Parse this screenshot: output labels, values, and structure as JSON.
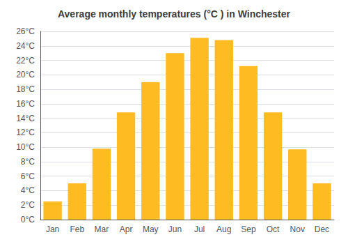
{
  "chart_data": {
    "type": "bar",
    "title": "Average monthly temperatures (°C ) in Winchester",
    "categories": [
      "Jan",
      "Feb",
      "Mar",
      "Apr",
      "May",
      "Jun",
      "Jul",
      "Aug",
      "Sep",
      "Oct",
      "Nov",
      "Dec"
    ],
    "values": [
      2.5,
      5.0,
      9.8,
      14.8,
      19.0,
      23.0,
      25.1,
      24.8,
      21.2,
      14.8,
      9.7,
      5.0
    ],
    "color": "#FFBB22",
    "ylim": [
      0,
      26
    ],
    "yticks": [
      {
        "value": 0,
        "label": "0°C"
      },
      {
        "value": 2,
        "label": "2°C"
      },
      {
        "value": 4,
        "label": "4°C"
      },
      {
        "value": 6,
        "label": "6°C"
      },
      {
        "value": 8,
        "label": "8°C"
      },
      {
        "value": 10,
        "label": "10°C"
      },
      {
        "value": 12,
        "label": "12°C"
      },
      {
        "value": 14,
        "label": "14°C"
      },
      {
        "value": 16,
        "label": "16°C"
      },
      {
        "value": 18,
        "label": "18°C"
      },
      {
        "value": 20,
        "label": "20°C"
      },
      {
        "value": 22,
        "label": "22°C"
      },
      {
        "value": 24,
        "label": "24°C"
      },
      {
        "value": 26,
        "label": "26°C"
      }
    ],
    "grid": true
  }
}
